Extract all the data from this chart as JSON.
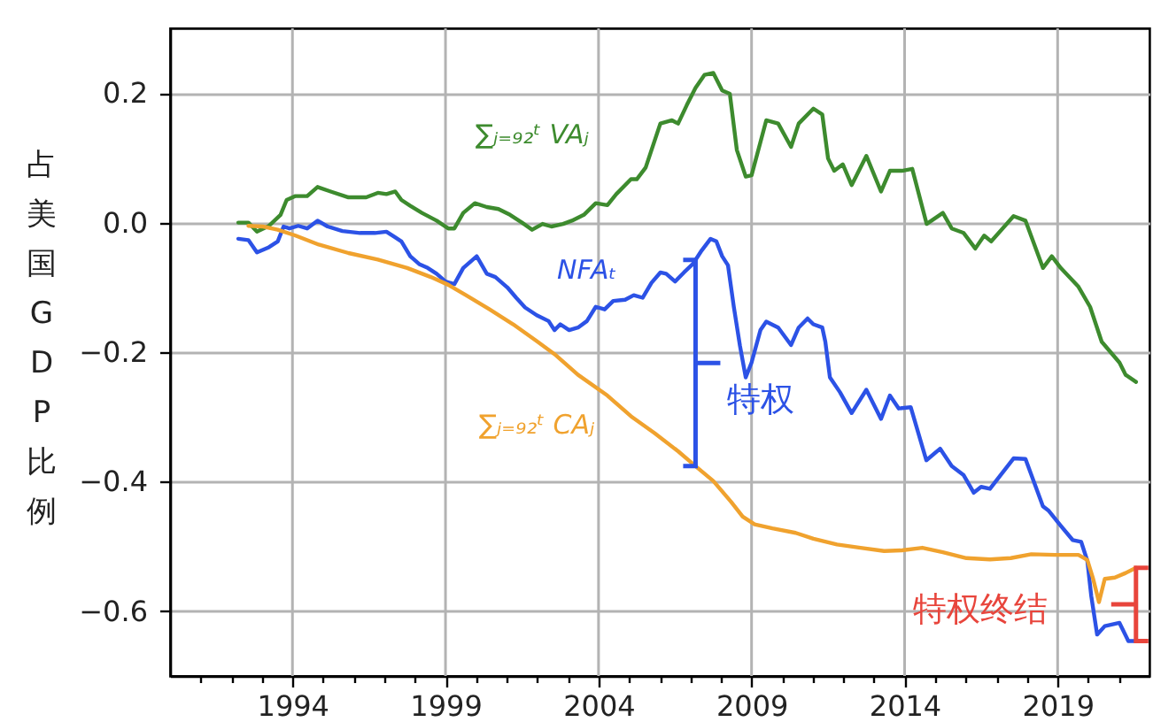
{
  "chart_data": {
    "type": "line",
    "ylabel": "占美国GDP比例",
    "xlim": [
      1990,
      2022
    ],
    "ylim": [
      -0.7,
      0.3
    ],
    "xticks": [
      {
        "value": 1991,
        "label": null
      },
      {
        "value": 1992,
        "label": null
      },
      {
        "value": 1993,
        "label": null
      },
      1994,
      {
        "value": 1995,
        "label": null
      },
      {
        "value": 1996,
        "label": null
      },
      {
        "value": 1997,
        "label": null
      },
      {
        "value": 1998,
        "label": null
      },
      1999,
      {
        "value": 2000,
        "label": null
      },
      {
        "value": 2001,
        "label": null
      },
      {
        "value": 2002,
        "label": null
      },
      {
        "value": 2003,
        "label": null
      },
      2004,
      {
        "value": 2005,
        "label": null
      },
      {
        "value": 2006,
        "label": null
      },
      {
        "value": 2007,
        "label": null
      },
      {
        "value": 2008,
        "label": null
      },
      2009,
      {
        "value": 2010,
        "label": null
      },
      {
        "value": 2011,
        "label": null
      },
      {
        "value": 2012,
        "label": null
      },
      {
        "value": 2013,
        "label": null
      },
      2014,
      {
        "value": 2015,
        "label": null
      },
      {
        "value": 2016,
        "label": null
      },
      {
        "value": 2017,
        "label": null
      },
      {
        "value": 2018,
        "label": null
      },
      2019,
      {
        "value": 2020,
        "label": null
      },
      {
        "value": 2021,
        "label": null
      }
    ],
    "yticks": [
      {
        "value": -0.6,
        "label": "−0.6"
      },
      {
        "value": -0.4,
        "label": "−0.4"
      },
      {
        "value": -0.2,
        "label": "−0.2"
      },
      {
        "value": 0,
        "label": "0.0"
      },
      0.2
    ],
    "grid": true,
    "series": [
      {
        "name": "∑ⱼ₌₉₂ᵗ VAⱼ",
        "color": "#3d8b2e",
        "x": [
          1992.23,
          1992.56,
          1992.84,
          1993.23,
          1993.61,
          1993.81,
          1994.1,
          1994.48,
          1994.82,
          1995.25,
          1995.83,
          1996.41,
          1996.79,
          1997.07,
          1997.36,
          1997.56,
          1997.85,
          1998.23,
          1998.71,
          1999.09,
          1999.29,
          1999.58,
          1999.96,
          2000.35,
          2000.73,
          2001.11,
          2001.5,
          2001.83,
          2002.17,
          2002.46,
          2002.84,
          2003.13,
          2003.52,
          2003.91,
          2004.29,
          2004.58,
          2005.06,
          2005.25,
          2005.54,
          2006.02,
          2006.4,
          2006.6,
          2006.88,
          2007.17,
          2007.46,
          2007.75,
          2008.04,
          2008.29,
          2008.52,
          2008.81,
          2009.0,
          2009.48,
          2009.87,
          2010.29,
          2010.54,
          2011.02,
          2011.31,
          2011.5,
          2011.7,
          2011.98,
          2012.27,
          2012.75,
          2013.23,
          2013.52,
          2013.91,
          2014.25,
          2014.72,
          2015.25,
          2015.54,
          2015.93,
          2016.31,
          2016.6,
          2016.83,
          2017.56,
          2017.95,
          2018.52,
          2018.81,
          2019.1,
          2019.68,
          2020.06,
          2020.44,
          2021.02,
          2021.22,
          2021.56
        ],
        "values": [
          0.0,
          0.0,
          -0.014,
          -0.005,
          0.012,
          0.035,
          0.041,
          0.041,
          0.055,
          0.048,
          0.039,
          0.039,
          0.046,
          0.044,
          0.048,
          0.035,
          0.026,
          0.015,
          0.003,
          -0.009,
          -0.009,
          0.015,
          0.03,
          0.024,
          0.021,
          0.012,
          0.0,
          -0.011,
          -0.002,
          -0.006,
          -0.002,
          0.003,
          0.012,
          0.03,
          0.027,
          0.044,
          0.067,
          0.067,
          0.085,
          0.153,
          0.158,
          0.153,
          0.181,
          0.208,
          0.228,
          0.231,
          0.204,
          0.199,
          0.112,
          0.071,
          0.073,
          0.158,
          0.153,
          0.117,
          0.153,
          0.176,
          0.167,
          0.099,
          0.08,
          0.09,
          0.058,
          0.103,
          0.048,
          0.08,
          0.08,
          0.083,
          -0.002,
          0.015,
          -0.009,
          -0.016,
          -0.04,
          -0.02,
          -0.029,
          0.01,
          0.003,
          -0.07,
          -0.052,
          -0.07,
          -0.099,
          -0.13,
          -0.184,
          -0.216,
          -0.235,
          -0.246
        ]
      },
      {
        "name": "NFAₜ",
        "color": "#2c52e6",
        "x": [
          1992.23,
          1992.56,
          1992.84,
          1993.23,
          1993.52,
          1993.71,
          1993.9,
          1994.19,
          1994.48,
          1994.82,
          1995.15,
          1995.63,
          1996.21,
          1996.69,
          1997.07,
          1997.33,
          1997.56,
          1997.85,
          1998.14,
          1998.42,
          1998.71,
          1999.0,
          1999.29,
          1999.58,
          2000.02,
          2000.35,
          2000.63,
          2001.02,
          2001.31,
          2001.6,
          2001.98,
          2002.37,
          2002.56,
          2002.75,
          2003.04,
          2003.33,
          2003.62,
          2003.91,
          2004.2,
          2004.48,
          2004.87,
          2005.15,
          2005.44,
          2005.73,
          2006.02,
          2006.21,
          2006.5,
          2006.79,
          2007.08,
          2007.37,
          2007.66,
          2007.85,
          2008.04,
          2008.23,
          2008.42,
          2008.62,
          2008.81,
          2009.0,
          2009.29,
          2009.48,
          2009.87,
          2010.29,
          2010.54,
          2010.83,
          2011.02,
          2011.31,
          2011.41,
          2011.56,
          2011.89,
          2012.27,
          2012.75,
          2013.23,
          2013.52,
          2013.81,
          2014.2,
          2014.71,
          2015.16,
          2015.54,
          2015.93,
          2016.26,
          2016.5,
          2016.79,
          2017.56,
          2017.95,
          2018.52,
          2018.71,
          2019.1,
          2019.49,
          2019.77,
          2019.97,
          2020.1,
          2020.29,
          2020.54,
          2021.02,
          2021.31,
          2021.56
        ],
        "values": [
          -0.025,
          -0.027,
          -0.046,
          -0.038,
          -0.029,
          -0.006,
          -0.009,
          -0.005,
          -0.009,
          0.003,
          -0.006,
          -0.013,
          -0.016,
          -0.016,
          -0.014,
          -0.022,
          -0.029,
          -0.052,
          -0.064,
          -0.07,
          -0.079,
          -0.091,
          -0.095,
          -0.07,
          -0.052,
          -0.079,
          -0.084,
          -0.1,
          -0.116,
          -0.131,
          -0.143,
          -0.152,
          -0.166,
          -0.157,
          -0.166,
          -0.162,
          -0.152,
          -0.13,
          -0.134,
          -0.121,
          -0.119,
          -0.112,
          -0.116,
          -0.093,
          -0.077,
          -0.079,
          -0.091,
          -0.077,
          -0.064,
          -0.043,
          -0.025,
          -0.029,
          -0.052,
          -0.066,
          -0.13,
          -0.19,
          -0.239,
          -0.216,
          -0.166,
          -0.153,
          -0.162,
          -0.189,
          -0.162,
          -0.148,
          -0.157,
          -0.162,
          -0.184,
          -0.239,
          -0.262,
          -0.294,
          -0.258,
          -0.303,
          -0.267,
          -0.287,
          -0.285,
          -0.367,
          -0.349,
          -0.376,
          -0.39,
          -0.417,
          -0.408,
          -0.411,
          -0.364,
          -0.365,
          -0.438,
          -0.445,
          -0.468,
          -0.49,
          -0.493,
          -0.522,
          -0.577,
          -0.636,
          -0.623,
          -0.618,
          -0.646,
          -0.646
        ]
      },
      {
        "name": "∑ⱼ₌₉₂ᵗ CAⱼ",
        "color": "#f0a22e",
        "x": [
          1992.56,
          1993.04,
          1993.52,
          1994.1,
          1994.86,
          1995.83,
          1996.79,
          1997.75,
          1998.52,
          1999.09,
          1999.67,
          2000.44,
          2001.21,
          2001.98,
          2002.56,
          2003.33,
          2004.29,
          2005.06,
          2005.83,
          2006.6,
          2007.17,
          2007.75,
          2008.33,
          2008.71,
          2009.1,
          2009.68,
          2010.44,
          2011.02,
          2011.79,
          2012.56,
          2013.33,
          2013.91,
          2014.58,
          2015.25,
          2016.02,
          2016.79,
          2017.47,
          2018.14,
          2018.91,
          2019.68,
          2019.97,
          2020.16,
          2020.35,
          2020.54,
          2020.87,
          2021.22,
          2021.56
        ],
        "values": [
          -0.005,
          -0.006,
          -0.011,
          -0.02,
          -0.034,
          -0.047,
          -0.057,
          -0.07,
          -0.084,
          -0.096,
          -0.112,
          -0.134,
          -0.157,
          -0.183,
          -0.203,
          -0.235,
          -0.267,
          -0.299,
          -0.325,
          -0.353,
          -0.376,
          -0.399,
          -0.431,
          -0.454,
          -0.466,
          -0.472,
          -0.479,
          -0.488,
          -0.497,
          -0.502,
          -0.507,
          -0.506,
          -0.502,
          -0.509,
          -0.518,
          -0.52,
          -0.518,
          -0.512,
          -0.513,
          -0.513,
          -0.521,
          -0.55,
          -0.586,
          -0.55,
          -0.548,
          -0.541,
          -0.533
        ]
      }
    ],
    "annotations": [
      {
        "text": "特权",
        "x": 2007.17,
        "y": -0.376
      },
      {
        "text": "特权终结",
        "x": 2021.56,
        "y": -0.646
      }
    ]
  }
}
